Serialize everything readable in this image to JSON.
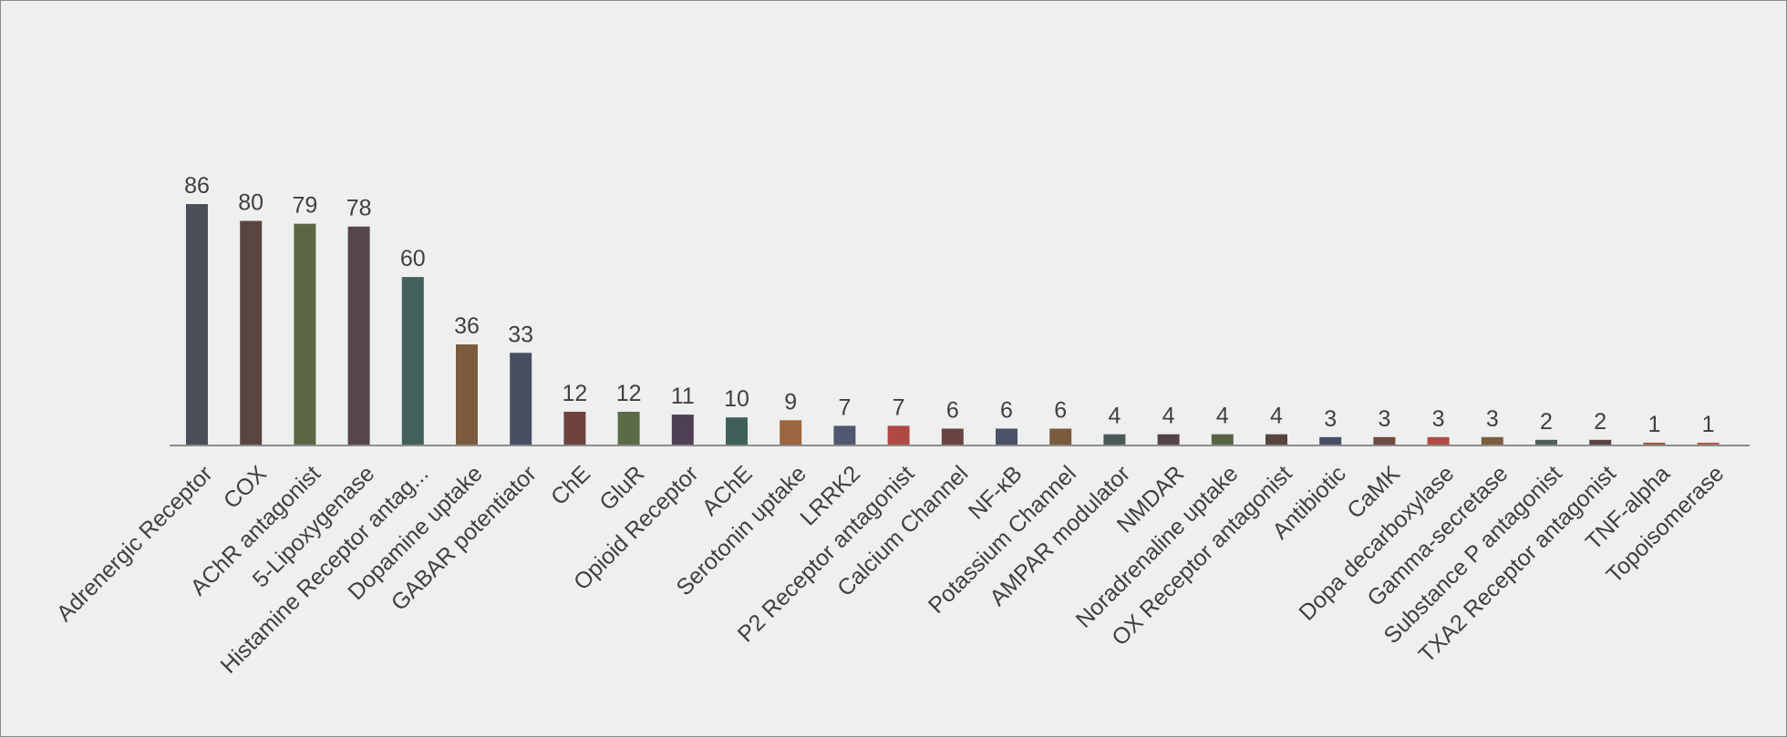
{
  "chart_data": {
    "type": "bar",
    "title": "",
    "xlabel": "",
    "ylabel": "",
    "ylim": [
      0,
      86
    ],
    "grid": false,
    "legend": "none",
    "categories": [
      "Adrenergic Receptor",
      "COX",
      "AChR antagonist",
      "5-Lipoxygenase",
      "Histamine Receptor antag...",
      "Dopamine uptake",
      "GABAR potentiator",
      "ChE",
      "GluR",
      "Opioid Receptor",
      "AChE",
      "Serotonin uptake",
      "LRRK2",
      "P2 Receptor antagonist",
      "Calcium Channel",
      "NF-κB",
      "Potassium Channel",
      "AMPAR modulator",
      "NMDAR",
      "Noradrenaline uptake",
      "OX Receptor antagonist",
      "Antibiotic",
      "CaMK",
      "Dopa decarboxylase",
      "Gamma-secretase",
      "Substance P antagonist",
      "TXA2 Receptor antagonist",
      "TNF-alpha",
      "Topoisomerase"
    ],
    "values": [
      86,
      80,
      79,
      78,
      60,
      36,
      33,
      12,
      12,
      11,
      10,
      9,
      7,
      7,
      6,
      6,
      6,
      4,
      4,
      4,
      4,
      3,
      3,
      3,
      3,
      2,
      2,
      1,
      1
    ],
    "value_labels": [
      "86",
      "80",
      "79",
      "78",
      "60",
      "36",
      "33",
      "12",
      "12",
      "11",
      "10",
      "9",
      "7",
      "7",
      "6",
      "6",
      "6",
      "4",
      "4",
      "4",
      "4",
      "3",
      "3",
      "3",
      "3",
      "2",
      "2",
      "1",
      "1"
    ],
    "colors": [
      "#4a4f5a",
      "#5a4540",
      "#5b6645",
      "#56454c",
      "#43605a",
      "#7b5a3d",
      "#494e62",
      "#6e423e",
      "#5b6a47",
      "#4e3f55",
      "#3f6058",
      "#9a6540",
      "#4f5870",
      "#b04844",
      "#6b4441",
      "#4a5168",
      "#7a5b3e",
      "#4a5a58",
      "#54424b",
      "#566346",
      "#58443e",
      "#474f63",
      "#6e4a43",
      "#b24a46",
      "#7d5d40",
      "#4d5d5a",
      "#55443f",
      "#a0553a",
      "#b45a46"
    ]
  }
}
